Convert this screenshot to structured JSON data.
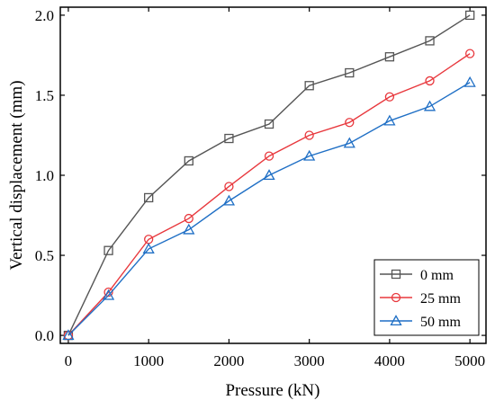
{
  "chart_data": {
    "type": "line",
    "title": "",
    "xlabel": "Pressure (kN)",
    "ylabel": "Vertical displacement (mm)",
    "xlim": [
      -100,
      5200
    ],
    "ylim": [
      -0.05,
      2.05
    ],
    "xticks": [
      0,
      1000,
      2000,
      3000,
      4000,
      5000
    ],
    "yticks": [
      0.0,
      0.5,
      1.0,
      1.5,
      2.0
    ],
    "xtick_labels": [
      "0",
      "1000",
      "2000",
      "3000",
      "4000",
      "5000"
    ],
    "ytick_labels": [
      "0.0",
      "0.5",
      "1.0",
      "1.5",
      "2.0"
    ],
    "grid": false,
    "legend_position": "bottom-right",
    "x": [
      0,
      500,
      1000,
      1500,
      2000,
      2500,
      3000,
      3500,
      4000,
      4500,
      5000
    ],
    "series": [
      {
        "name": "0 mm",
        "color": "#555555",
        "marker": "square",
        "values": [
          0.0,
          0.53,
          0.86,
          1.09,
          1.23,
          1.32,
          1.56,
          1.64,
          1.74,
          1.84,
          2.0
        ]
      },
      {
        "name": "25 mm",
        "color": "#e8383d",
        "marker": "circle",
        "values": [
          0.0,
          0.27,
          0.6,
          0.73,
          0.93,
          1.12,
          1.25,
          1.33,
          1.49,
          1.59,
          1.76
        ]
      },
      {
        "name": "50 mm",
        "color": "#1f6fc5",
        "marker": "triangle",
        "values": [
          0.0,
          0.25,
          0.54,
          0.66,
          0.84,
          1.0,
          1.12,
          1.2,
          1.34,
          1.43,
          1.58
        ]
      }
    ]
  }
}
